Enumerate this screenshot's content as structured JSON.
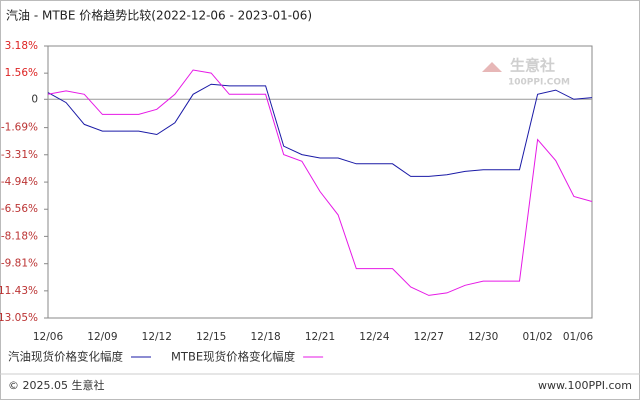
{
  "chart_data": {
    "type": "line",
    "title": "汽油 - MTBE 价格趋势比较(2022-12-06 - 2023-01-06)",
    "categories": [
      "12/06",
      null,
      null,
      "12/09",
      null,
      null,
      "12/12",
      null,
      null,
      "12/15",
      null,
      null,
      "12/18",
      null,
      null,
      "12/21",
      null,
      null,
      "12/24",
      null,
      null,
      "12/27",
      null,
      null,
      "12/30",
      null,
      null,
      "01/02",
      null,
      null,
      "01/06"
    ],
    "series": [
      {
        "name": "汽油现货价格变化幅度",
        "color": "#1a1aa6",
        "values": [
          0.4,
          -0.2,
          -1.5,
          -1.9,
          -1.9,
          -1.9,
          -2.1,
          -1.4,
          0.3,
          0.9,
          0.8,
          0.8,
          0.8,
          -2.8,
          -3.3,
          -3.5,
          -3.5,
          -3.85,
          -3.85,
          -3.85,
          -4.6,
          -4.6,
          -4.5,
          -4.3,
          -4.2,
          -4.2,
          -4.2,
          0.3,
          0.55,
          0,
          0.1
        ]
      },
      {
        "name": "MTBE现货价格变化幅度",
        "color": "#e619e6",
        "values": [
          0.3,
          0.5,
          0.3,
          -0.9,
          -0.9,
          -0.9,
          -0.6,
          0.3,
          1.75,
          1.56,
          0.3,
          0.3,
          0.3,
          -3.3,
          -3.7,
          -5.5,
          -6.9,
          -10.1,
          -10.1,
          -10.1,
          -11.2,
          -11.7,
          -11.55,
          -11.1,
          -10.85,
          -10.85,
          -10.85,
          -2.4,
          -3.65,
          -5.8,
          -6.1
        ]
      }
    ],
    "ylim": [
      -13.05,
      3.18
    ],
    "yticks": [
      {
        "value": 3.18,
        "label": "3.18%"
      },
      {
        "value": 1.56,
        "label": "1.56%"
      },
      0,
      {
        "value": -1.69,
        "label": "-1.69%"
      },
      {
        "value": -3.31,
        "label": "-3.31%"
      },
      {
        "value": -4.94,
        "label": "-4.94%"
      },
      {
        "value": -6.56,
        "label": "-6.56%"
      },
      {
        "value": -8.18,
        "label": "-8.18%"
      },
      {
        "value": -9.81,
        "label": "-9.81%"
      },
      {
        "value": -11.43,
        "label": "-11.43%"
      },
      {
        "value": -13.05,
        "label": "-13.05%"
      }
    ],
    "grid": false
  },
  "watermark": {
    "name": "生意社",
    "site": "100PPI.COM"
  },
  "footer": {
    "copyright": "© 2025.05 生意社",
    "url": "www.100PPI.com"
  }
}
